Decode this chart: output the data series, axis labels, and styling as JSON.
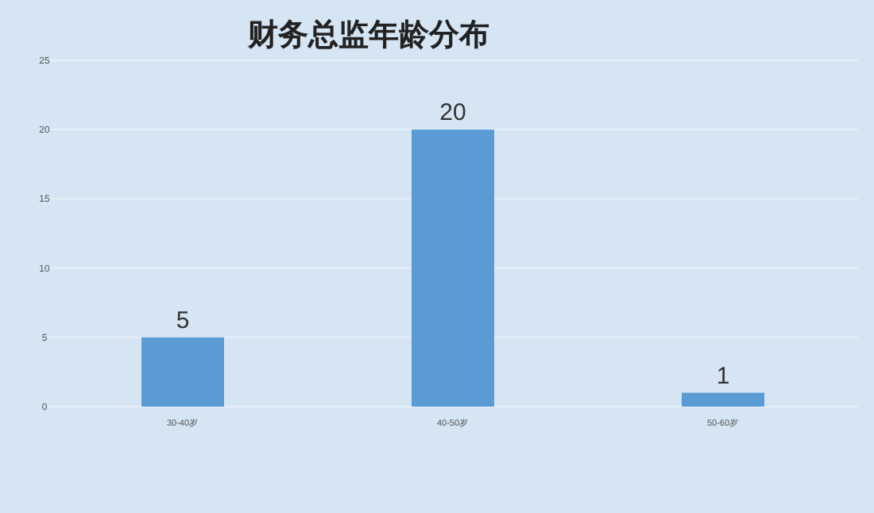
{
  "chart_data": {
    "type": "bar",
    "title": "财务总监年龄分布",
    "categories": [
      "30-40岁",
      "40-50岁",
      "50-60岁"
    ],
    "values": [
      5,
      20,
      1
    ],
    "color": "#5b9bd5",
    "ylim": [
      0,
      25
    ],
    "yticks": [
      0,
      5,
      10,
      15,
      20,
      25
    ],
    "grid": "y",
    "data_labels": true
  }
}
